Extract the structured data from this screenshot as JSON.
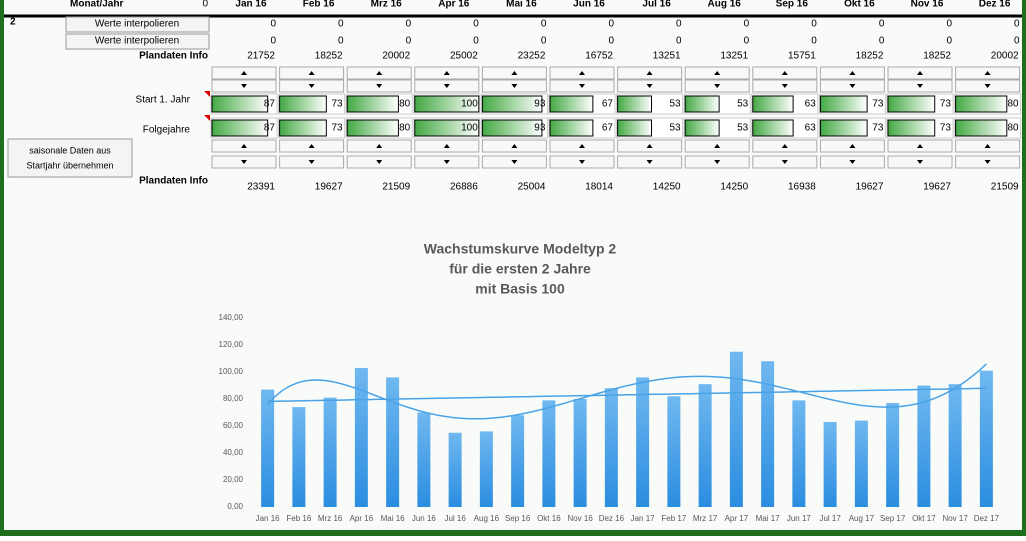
{
  "header": {
    "row_label": "Monat/Jahr",
    "zero": "0",
    "months": [
      "Jan 16",
      "Feb 16",
      "Mrz 16",
      "Apr 16",
      "Mai 16",
      "Jun 16",
      "Jul 16",
      "Aug 16",
      "Sep 16",
      "Okt 16",
      "Nov 16",
      "Dez 16"
    ]
  },
  "row_number": "2",
  "interpolate_rows": [
    {
      "button": "Werte interpolieren",
      "values": [
        0,
        0,
        0,
        0,
        0,
        0,
        0,
        0,
        0,
        0,
        0,
        0
      ]
    },
    {
      "button": "Werte interpolieren",
      "values": [
        0,
        0,
        0,
        0,
        0,
        0,
        0,
        0,
        0,
        0,
        0,
        0
      ]
    }
  ],
  "plan_info_1": {
    "label": "Plandaten Info",
    "values": [
      21752,
      18252,
      20002,
      25002,
      23252,
      16752,
      13251,
      13251,
      15751,
      18252,
      18252,
      20002
    ]
  },
  "start_year": {
    "label": "Start 1. Jahr",
    "values": [
      87,
      73,
      80,
      100,
      93,
      67,
      53,
      53,
      63,
      73,
      73,
      80
    ]
  },
  "following_years": {
    "label": "Folgejahre",
    "values": [
      87,
      73,
      80,
      100,
      93,
      67,
      53,
      53,
      63,
      73,
      73,
      80
    ]
  },
  "copy_button": [
    "saisonale Daten aus",
    "Startjahr übernehmen"
  ],
  "plan_info_2": {
    "label": "Plandaten Info",
    "values": [
      23391,
      19627,
      21509,
      26886,
      25004,
      18014,
      14250,
      14250,
      16938,
      19627,
      19627,
      21509
    ]
  },
  "chart_data": {
    "type": "bar",
    "title": [
      "Wachstumskurve Modeltyp 2",
      "für die ersten 2 Jahre",
      "mit Basis 100"
    ],
    "categories": [
      "Jan 16",
      "Feb 16",
      "Mrz 16",
      "Apr 16",
      "Mai 16",
      "Jun 16",
      "Jul 16",
      "Aug 16",
      "Sep 16",
      "Okt 16",
      "Nov 16",
      "Dez 16",
      "Jan 17",
      "Feb 17",
      "Mrz 17",
      "Apr 17",
      "Mai 17",
      "Jun 17",
      "Jul 17",
      "Aug 17",
      "Sep 17",
      "Okt 17",
      "Nov 17",
      "Dez 17"
    ],
    "values": [
      87,
      74,
      81,
      103,
      96,
      70,
      55,
      56,
      68,
      79,
      80,
      88,
      96,
      82,
      91,
      115,
      108,
      79,
      63,
      64,
      77,
      90,
      91,
      101
    ],
    "color": "#45a2ec",
    "ylim": [
      0,
      140
    ],
    "yticks": [
      {
        "value": 0,
        "label": "0,00"
      },
      {
        "value": 20,
        "label": "20,00"
      },
      {
        "value": 40,
        "label": "40,00"
      },
      {
        "value": 60,
        "label": "60,00"
      },
      {
        "value": 80,
        "label": "80,00"
      },
      {
        "value": 100,
        "label": "100,00"
      },
      {
        "value": 120,
        "label": "120,00"
      },
      {
        "value": 140,
        "label": "140,00"
      }
    ]
  }
}
